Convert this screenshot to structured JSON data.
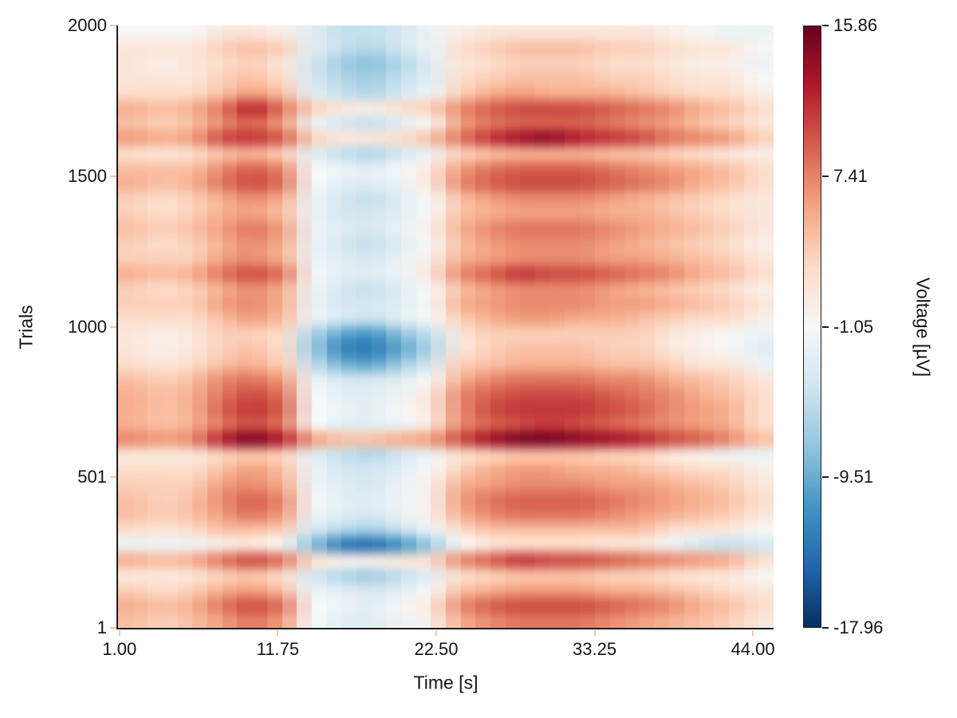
{
  "figure": {
    "xlabel": "Time [s]",
    "ylabel": "Trials",
    "background_color": "#ffffff",
    "axis_color": "#1c1c1c",
    "axis_tick_color": "#f2c2a4",
    "colorbar_label": "Voltage [µV]"
  },
  "chart_data": {
    "type": "heatmap",
    "title": "",
    "xlabel": "Time [s]",
    "ylabel": "Trials",
    "colorbar_label": "Voltage [µV]",
    "colormap": "RdBu_r",
    "vmin": -17.96,
    "vmax": 15.86,
    "colorbar_tick_values": [
      15.86,
      7.41,
      -1.05,
      -9.51,
      -17.96
    ],
    "colorbar_tick_labels": [
      "15.86",
      "7.41",
      "-1.05",
      "-9.51",
      "-17.96"
    ],
    "x_tick_values": [
      1.0,
      11.75,
      22.5,
      33.25,
      44.0
    ],
    "x_tick_labels": [
      "1.00",
      "11.75",
      "22.50",
      "33.25",
      "44.00"
    ],
    "y_tick_values": [
      1,
      501,
      1000,
      1500,
      2000
    ],
    "y_tick_labels": [
      "1",
      "501",
      "1000",
      "1500",
      "2000"
    ],
    "x_edges": [
      0.9,
      45.4
    ],
    "y_edges": [
      0.5,
      2000.5
    ],
    "grid_note": "Voltage in uV, downsampled by eye from the ERP image: rows top-to-bottom are trial bins 2000->1 (50 trials per bin), columns left-to-right are time bins 1->45 s (2 s per bin)",
    "time_bin_centers": [
      2,
      4,
      6,
      8,
      10,
      12,
      14,
      16,
      18,
      20,
      22,
      24,
      26,
      28,
      30,
      32,
      34,
      36,
      38,
      40,
      42,
      44
    ],
    "trial_bin_size": 50,
    "values": [
      [
        -1,
        -1,
        -1,
        1,
        1,
        0,
        -3,
        -5,
        -5,
        -4,
        -2,
        0,
        1,
        1,
        1,
        1,
        1,
        1,
        0,
        -1,
        -2,
        -2
      ],
      [
        1,
        1,
        1,
        3,
        4,
        3,
        -3,
        -5,
        -6,
        -4,
        -2,
        2,
        3,
        4,
        4,
        4,
        3,
        3,
        2,
        1,
        1,
        -1
      ],
      [
        1,
        0,
        1,
        2,
        3,
        1,
        -4,
        -7,
        -8,
        -6,
        -3,
        1,
        2,
        3,
        3,
        3,
        2,
        2,
        1,
        0,
        0,
        -2
      ],
      [
        1,
        1,
        1,
        3,
        4,
        2,
        -4,
        -6,
        -7,
        -5,
        -3,
        2,
        3,
        4,
        4,
        4,
        3,
        3,
        2,
        1,
        1,
        -1
      ],
      [
        2,
        2,
        2,
        4,
        6,
        4,
        -3,
        -5,
        -6,
        -4,
        -2,
        3,
        5,
        6,
        5,
        5,
        5,
        4,
        3,
        2,
        2,
        0
      ],
      [
        5,
        4,
        5,
        8,
        12,
        8,
        3,
        1,
        0,
        2,
        3,
        7,
        9,
        10,
        10,
        10,
        9,
        8,
        7,
        5,
        4,
        2
      ],
      [
        4,
        3,
        4,
        7,
        9,
        6,
        -2,
        -4,
        -5,
        -3,
        -1,
        6,
        8,
        9,
        9,
        9,
        8,
        7,
        6,
        4,
        3,
        1
      ],
      [
        6,
        5,
        6,
        10,
        11,
        9,
        3,
        1,
        1,
        2,
        4,
        8,
        11,
        13,
        14,
        12,
        11,
        10,
        8,
        7,
        6,
        3
      ],
      [
        2,
        1,
        2,
        4,
        5,
        3,
        -3,
        -5,
        -6,
        -4,
        -2,
        3,
        4,
        5,
        5,
        5,
        4,
        4,
        3,
        2,
        1,
        0
      ],
      [
        4,
        4,
        4,
        7,
        9,
        7,
        -1,
        -2,
        -3,
        -1,
        1,
        6,
        8,
        9,
        9,
        9,
        8,
        7,
        6,
        5,
        4,
        2
      ],
      [
        5,
        4,
        5,
        8,
        10,
        8,
        -1,
        -3,
        -3,
        -2,
        1,
        7,
        9,
        10,
        10,
        10,
        9,
        8,
        7,
        5,
        4,
        2
      ],
      [
        3,
        2,
        3,
        5,
        7,
        5,
        -2,
        -4,
        -5,
        -3,
        -1,
        4,
        6,
        7,
        7,
        7,
        6,
        5,
        4,
        3,
        2,
        1
      ],
      [
        3,
        2,
        3,
        5,
        6,
        4,
        -2,
        -4,
        -4,
        -3,
        -1,
        4,
        5,
        6,
        6,
        6,
        5,
        5,
        4,
        3,
        2,
        1
      ],
      [
        4,
        3,
        4,
        6,
        8,
        6,
        -2,
        -3,
        -4,
        -2,
        0,
        5,
        7,
        8,
        8,
        8,
        7,
        6,
        5,
        4,
        3,
        1
      ],
      [
        3,
        2,
        3,
        5,
        7,
        5,
        -2,
        -4,
        -5,
        -3,
        -1,
        4,
        6,
        7,
        7,
        7,
        6,
        5,
        4,
        3,
        2,
        0
      ],
      [
        3,
        3,
        3,
        6,
        7,
        5,
        -2,
        -3,
        -4,
        -2,
        0,
        5,
        6,
        7,
        7,
        7,
        6,
        6,
        5,
        4,
        3,
        1
      ],
      [
        5,
        4,
        5,
        8,
        10,
        8,
        -1,
        -3,
        -3,
        -2,
        1,
        7,
        9,
        11,
        10,
        10,
        9,
        8,
        7,
        5,
        4,
        2
      ],
      [
        3,
        2,
        3,
        5,
        7,
        5,
        -2,
        -4,
        -5,
        -3,
        -1,
        4,
        6,
        7,
        7,
        7,
        6,
        5,
        4,
        3,
        2,
        0
      ],
      [
        3,
        3,
        3,
        6,
        7,
        5,
        -2,
        -4,
        -4,
        -3,
        -1,
        5,
        6,
        7,
        7,
        7,
        6,
        6,
        5,
        4,
        3,
        1
      ],
      [
        2,
        2,
        2,
        4,
        6,
        4,
        -2,
        -4,
        -5,
        -3,
        -1,
        3,
        5,
        6,
        6,
        5,
        5,
        4,
        3,
        2,
        2,
        0
      ],
      [
        1,
        0,
        1,
        3,
        3,
        2,
        -6,
        -10,
        -11,
        -8,
        -5,
        1,
        3,
        3,
        3,
        3,
        3,
        3,
        1,
        0,
        -1,
        -2
      ],
      [
        1,
        0,
        1,
        3,
        4,
        2,
        -7,
        -12,
        -13,
        -10,
        -6,
        1,
        3,
        4,
        4,
        4,
        3,
        3,
        1,
        0,
        -1,
        -3
      ],
      [
        2,
        1,
        2,
        4,
        5,
        3,
        -5,
        -9,
        -10,
        -7,
        -4,
        3,
        4,
        5,
        5,
        5,
        4,
        4,
        3,
        1,
        1,
        -2
      ],
      [
        4,
        3,
        4,
        7,
        8,
        6,
        -2,
        -4,
        -4,
        -3,
        -1,
        5,
        7,
        8,
        8,
        8,
        7,
        7,
        5,
        4,
        3,
        1
      ],
      [
        5,
        4,
        5,
        8,
        10,
        8,
        -1,
        -3,
        -3,
        -2,
        1,
        7,
        9,
        10,
        10,
        10,
        9,
        8,
        7,
        5,
        4,
        2
      ],
      [
        5,
        4,
        5,
        9,
        11,
        9,
        -1,
        -2,
        -3,
        -1,
        1,
        7,
        10,
        11,
        11,
        11,
        10,
        9,
        7,
        6,
        5,
        2
      ],
      [
        5,
        4,
        5,
        8,
        10,
        8,
        -1,
        -3,
        -3,
        -2,
        1,
        7,
        9,
        10,
        11,
        10,
        9,
        8,
        7,
        6,
        5,
        2
      ],
      [
        7,
        6,
        7,
        12,
        15,
        12,
        6,
        4,
        4,
        5,
        6,
        10,
        13,
        15,
        15,
        14,
        13,
        12,
        10,
        9,
        7,
        4
      ],
      [
        1,
        1,
        1,
        3,
        4,
        3,
        -3,
        -5,
        -6,
        -4,
        -2,
        2,
        3,
        4,
        4,
        4,
        3,
        3,
        1,
        0,
        -2,
        -2
      ],
      [
        2,
        2,
        2,
        4,
        6,
        4,
        -2,
        -4,
        -4,
        -3,
        -1,
        3,
        5,
        6,
        6,
        5,
        5,
        4,
        3,
        2,
        2,
        0
      ],
      [
        3,
        3,
        3,
        6,
        7,
        5,
        -2,
        -3,
        -4,
        -2,
        0,
        5,
        6,
        7,
        7,
        7,
        6,
        6,
        5,
        4,
        3,
        1
      ],
      [
        4,
        3,
        4,
        7,
        9,
        7,
        -1,
        -3,
        -3,
        -2,
        0,
        6,
        8,
        9,
        9,
        9,
        8,
        7,
        6,
        5,
        4,
        2
      ],
      [
        4,
        3,
        4,
        6,
        8,
        6,
        -2,
        -3,
        -4,
        -2,
        0,
        5,
        7,
        8,
        8,
        8,
        7,
        6,
        5,
        4,
        3,
        1
      ],
      [
        2,
        1,
        2,
        4,
        4,
        3,
        -4,
        -6,
        -7,
        -5,
        -2,
        2,
        4,
        4,
        4,
        4,
        4,
        4,
        2,
        1,
        1,
        -1
      ],
      [
        -2,
        -2,
        -2,
        0,
        1,
        -1,
        -8,
        -13,
        -14,
        -11,
        -7,
        -1,
        1,
        2,
        2,
        2,
        1,
        1,
        -2,
        -4,
        -5,
        -4
      ],
      [
        5,
        4,
        5,
        8,
        10,
        8,
        2,
        0,
        0,
        1,
        2,
        7,
        9,
        11,
        10,
        10,
        9,
        8,
        7,
        6,
        5,
        2
      ],
      [
        1,
        1,
        1,
        3,
        4,
        2,
        -4,
        -6,
        -7,
        -5,
        -3,
        2,
        3,
        4,
        4,
        4,
        3,
        3,
        2,
        1,
        1,
        -1
      ],
      [
        3,
        2,
        3,
        5,
        6,
        4,
        -2,
        -3,
        -4,
        -3,
        -1,
        4,
        5,
        6,
        6,
        6,
        5,
        5,
        4,
        3,
        2,
        1
      ],
      [
        5,
        4,
        5,
        8,
        10,
        8,
        -1,
        -2,
        -3,
        -1,
        1,
        7,
        9,
        10,
        10,
        10,
        9,
        8,
        7,
        5,
        4,
        2
      ],
      [
        4,
        3,
        4,
        6,
        8,
        6,
        -1,
        -3,
        -3,
        -2,
        0,
        5,
        7,
        8,
        8,
        8,
        7,
        6,
        5,
        4,
        3,
        1
      ]
    ]
  }
}
